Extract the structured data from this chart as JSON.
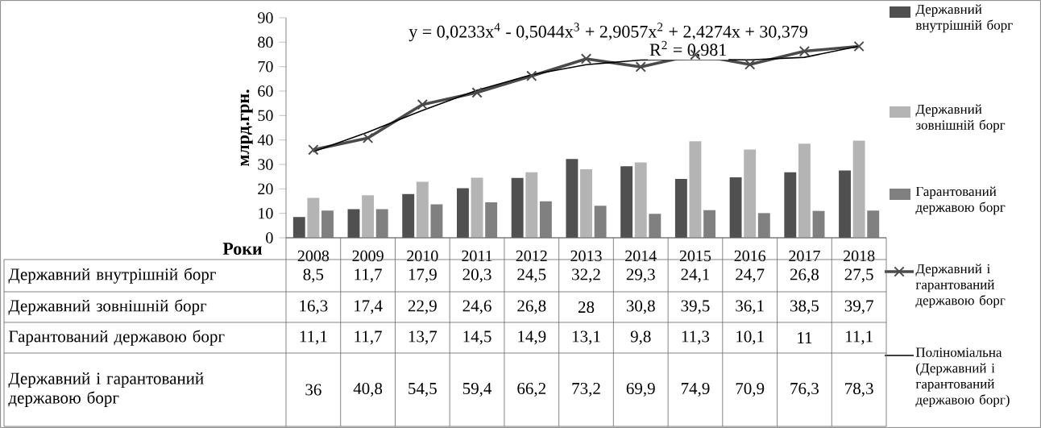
{
  "chart_data": {
    "type": "bar",
    "xlabel": "Роки",
    "ylabel": "млрд.грн.",
    "categories": [
      "2008",
      "2009",
      "2010",
      "2011",
      "2012",
      "2013",
      "2014",
      "2015",
      "2016",
      "2017",
      "2018"
    ],
    "series": [
      {
        "name": "Державний внутрішній борг",
        "color": "#505050",
        "values": [
          8.5,
          11.7,
          17.9,
          20.3,
          24.5,
          32.2,
          29.3,
          24.1,
          24.7,
          26.8,
          27.5
        ],
        "value_labels": [
          "8,5",
          "11,7",
          "17,9",
          "20,3",
          "24,5",
          "32,2",
          "29,3",
          "24,1",
          "24,7",
          "26,8",
          "27,5"
        ]
      },
      {
        "name": "Державний зовнішній борг",
        "color": "#b4b4b4",
        "values": [
          16.3,
          17.4,
          22.9,
          24.6,
          26.8,
          28,
          30.8,
          39.5,
          36.1,
          38.5,
          39.7
        ],
        "value_labels": [
          "16,3",
          "17,4",
          "22,9",
          "24,6",
          "26,8",
          "28",
          "30,8",
          "39,5",
          "36,1",
          "38,5",
          "39,7"
        ]
      },
      {
        "name": "Гарантований державою борг",
        "color": "#808080",
        "values": [
          11.1,
          11.7,
          13.7,
          14.5,
          14.9,
          13.1,
          9.8,
          11.3,
          10.1,
          11,
          11.1
        ],
        "value_labels": [
          "11,1",
          "11,7",
          "13,7",
          "14,5",
          "14,9",
          "13,1",
          "9,8",
          "11,3",
          "10,1",
          "11",
          "11,1"
        ]
      },
      {
        "name": "Державний і гарантований державою борг",
        "type": "line",
        "marker": "cross",
        "color": "#4a4a4a",
        "values": [
          36,
          40.8,
          54.5,
          59.4,
          66.2,
          73.2,
          69.9,
          74.9,
          70.9,
          76.3,
          78.3
        ],
        "value_labels": [
          "36",
          "40,8",
          "54,5",
          "59,4",
          "66,2",
          "73,2",
          "69,9",
          "74,9",
          "70,9",
          "76,3",
          "78,3"
        ]
      },
      {
        "name": "Поліноміальна (Державний і гарантований державою борг)",
        "type": "line",
        "color": "#000000",
        "values": [
          35.2,
          43.2,
          52.1,
          60.3,
          66.7,
          70.8,
          72.7,
          72.9,
          72.8,
          73.8,
          78.4
        ]
      }
    ],
    "ylim": [
      0,
      90
    ],
    "yticks": [
      0,
      10,
      20,
      30,
      40,
      50,
      60,
      70,
      80,
      90
    ],
    "legend": "right",
    "annotations": [
      "y = 0,0233x$^{4}$ - 0,5044x$^{3}$ + 2,9057x$^{2}$ + 2,4274x + 30,379",
      "R$^{2}$ = 0,981"
    ]
  }
}
